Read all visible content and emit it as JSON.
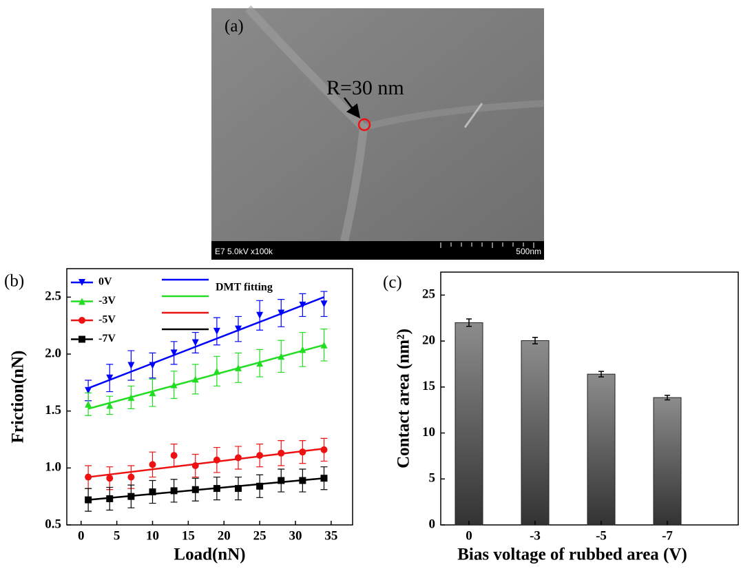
{
  "figure_a": {
    "label": "(a)",
    "annotation": "R=30 nm",
    "info": "E7 5.0kV x100k",
    "scale": "500nm"
  },
  "chart_data": [
    {
      "type": "line",
      "panel": "(b)",
      "x_label": "Load(nN)",
      "y_label": "Friction(nN)",
      "x": [
        1,
        4,
        7,
        10,
        13,
        16,
        19,
        22,
        25,
        28,
        31,
        34
      ],
      "series": [
        {
          "name": "0V",
          "color": "#0000ff",
          "marker": "triangle-down",
          "values": [
            1.68,
            1.79,
            1.9,
            1.9,
            2.01,
            2.1,
            2.2,
            2.22,
            2.34,
            2.36,
            2.43,
            2.44
          ],
          "errors": [
            0.09,
            0.12,
            0.13,
            0.11,
            0.1,
            0.09,
            0.12,
            0.11,
            0.13,
            0.12,
            0.1,
            0.11
          ]
        },
        {
          "name": "-3V",
          "color": "#22dd22",
          "marker": "triangle-up",
          "values": [
            1.56,
            1.55,
            1.62,
            1.66,
            1.73,
            1.78,
            1.85,
            1.88,
            1.92,
            1.98,
            2.04,
            2.08
          ],
          "errors": [
            0.1,
            0.08,
            0.1,
            0.12,
            0.12,
            0.13,
            0.13,
            0.13,
            0.12,
            0.14,
            0.15,
            0.14
          ]
        },
        {
          "name": "-5V",
          "color": "#ee1111",
          "marker": "circle",
          "values": [
            0.92,
            0.91,
            0.92,
            1.03,
            1.11,
            1.02,
            1.07,
            1.09,
            1.11,
            1.13,
            1.14,
            1.16
          ],
          "errors": [
            0.1,
            0.1,
            0.1,
            0.11,
            0.1,
            0.1,
            0.11,
            0.1,
            0.1,
            0.11,
            0.1,
            0.1
          ]
        },
        {
          "name": "-7V",
          "color": "#000000",
          "marker": "square",
          "values": [
            0.72,
            0.73,
            0.75,
            0.79,
            0.8,
            0.81,
            0.82,
            0.82,
            0.84,
            0.89,
            0.89,
            0.91
          ],
          "errors": [
            0.1,
            0.1,
            0.1,
            0.1,
            0.1,
            0.1,
            0.1,
            0.1,
            0.1,
            0.1,
            0.1,
            0.1
          ]
        }
      ],
      "fits": [
        {
          "name": "DMT fitting",
          "color": "#0000ff",
          "x": [
            1,
            34
          ],
          "values": [
            1.7,
            2.5
          ]
        },
        {
          "color": "#22dd22",
          "x": [
            1,
            34
          ],
          "values": [
            1.52,
            2.08
          ]
        },
        {
          "color": "#ee1111",
          "x": [
            1,
            34
          ],
          "values": [
            0.92,
            1.17
          ]
        },
        {
          "color": "#000000",
          "x": [
            1,
            34
          ],
          "values": [
            0.72,
            0.91
          ]
        }
      ],
      "xlim": [
        -2,
        38
      ],
      "xticks": [
        0,
        5,
        10,
        15,
        20,
        25,
        30,
        35
      ],
      "ylim": [
        0.5,
        2.75
      ],
      "yticks": [
        0.5,
        {
          "value": 1,
          "label": "1.0"
        },
        1.5,
        {
          "value": 2,
          "label": "2.0"
        },
        2.5
      ]
    },
    {
      "type": "bar",
      "panel": "(c)",
      "x_label": "Bias voltage of rubbed area (V)",
      "y_label": "Contact area (nm²)",
      "categories": [
        "0",
        "-3",
        "-5",
        "-7"
      ],
      "values": [
        22.0,
        20.05,
        16.4,
        13.85
      ],
      "errors": [
        0.4,
        0.35,
        0.3,
        0.25
      ],
      "ylim": [
        0,
        27.5
      ],
      "yticks": [
        0,
        5,
        10,
        15,
        20,
        25
      ]
    }
  ]
}
